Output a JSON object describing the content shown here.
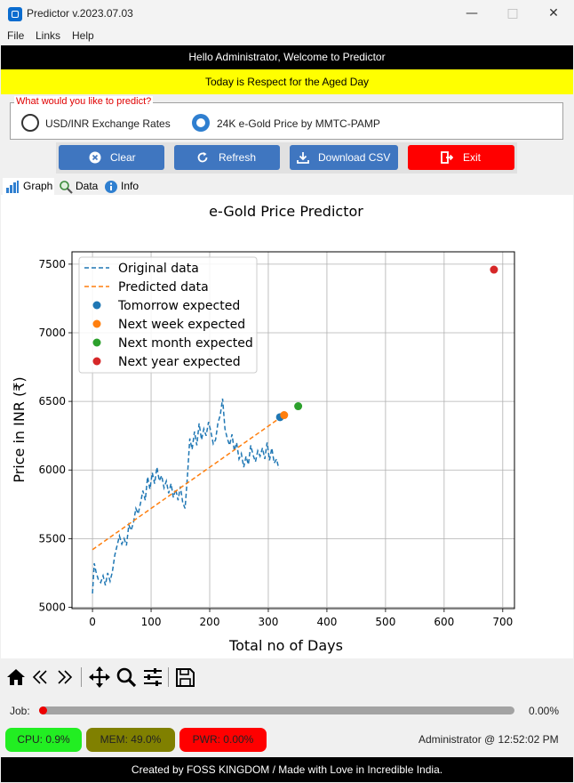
{
  "window": {
    "title": "Predictor v.2023.07.03"
  },
  "menu": {
    "items": [
      "File",
      "Links",
      "Help"
    ]
  },
  "banner": {
    "welcome": "Hello Administrator, Welcome to Predictor",
    "day_text": "Today is Respect for the Aged Day",
    "day_bg": "#ffff00"
  },
  "predict_group": {
    "legend": "What would you like to predict?",
    "options": [
      {
        "label": "USD/INR Exchange Rates",
        "selected": false
      },
      {
        "label": "24K e-Gold Price by MMTC-PAMP",
        "selected": true
      }
    ]
  },
  "buttons": {
    "clear": {
      "label": "Clear",
      "icon": "close-circle-icon",
      "color": "#3f76c0"
    },
    "refresh": {
      "label": "Refresh",
      "icon": "refresh-icon",
      "color": "#3f76c0"
    },
    "download": {
      "label": "Download CSV",
      "icon": "download-icon",
      "color": "#3f76c0"
    },
    "exit": {
      "label": "Exit",
      "icon": "exit-door-icon",
      "color": "#ff0000"
    }
  },
  "tabs": [
    {
      "label": "Graph",
      "icon": "bar-chart-icon",
      "active": true
    },
    {
      "label": "Data",
      "icon": "magnifier-icon",
      "active": false
    },
    {
      "label": "Info",
      "icon": "info-icon",
      "active": false
    }
  ],
  "chart_data": {
    "type": "line",
    "title": "e-Gold Price Predictor",
    "xlabel": "Total no of Days",
    "ylabel": "Price in INR (₹)",
    "xlim": [
      -35,
      720
    ],
    "ylim": [
      4990,
      7590
    ],
    "xticks": [
      0,
      100,
      200,
      300,
      400,
      500,
      600,
      700
    ],
    "yticks": [
      5000,
      5500,
      6000,
      6500,
      7000,
      7500
    ],
    "grid": true,
    "legend_position": "top-left",
    "series": [
      {
        "name": "Original data",
        "style": "dashed-line",
        "color": "#1f77b4",
        "x": [
          0,
          3,
          6,
          10,
          14,
          18,
          22,
          26,
          30,
          34,
          38,
          42,
          46,
          50,
          54,
          58,
          62,
          66,
          70,
          74,
          78,
          82,
          86,
          90,
          94,
          98,
          102,
          106,
          110,
          114,
          118,
          122,
          126,
          130,
          134,
          138,
          142,
          146,
          150,
          154,
          158,
          162,
          166,
          170,
          174,
          178,
          182,
          186,
          190,
          194,
          198,
          202,
          206,
          210,
          214,
          218,
          222,
          226,
          230,
          234,
          238,
          242,
          246,
          250,
          254,
          258,
          262,
          266,
          270,
          274,
          278,
          282,
          286,
          290,
          294,
          298,
          302,
          306,
          310,
          314,
          318
        ],
        "y": [
          5100,
          5320,
          5260,
          5200,
          5180,
          5230,
          5160,
          5250,
          5190,
          5260,
          5380,
          5450,
          5520,
          5460,
          5500,
          5450,
          5600,
          5560,
          5620,
          5720,
          5680,
          5760,
          5850,
          5780,
          5950,
          5860,
          5980,
          5900,
          6020,
          5920,
          5960,
          5870,
          5920,
          5830,
          5900,
          5800,
          5860,
          5780,
          5880,
          5760,
          5720,
          5950,
          6230,
          6150,
          6280,
          6180,
          6340,
          6220,
          6300,
          6250,
          6350,
          6280,
          6190,
          6220,
          6340,
          6400,
          6520,
          6300,
          6230,
          6180,
          6260,
          6140,
          6200,
          6080,
          6120,
          6020,
          6100,
          6040,
          6180,
          6110,
          6060,
          6140,
          6100,
          6160,
          6080,
          6200,
          6070,
          6160,
          6050,
          6080,
          6010
        ]
      },
      {
        "name": "Predicted data",
        "style": "dashed-line",
        "color": "#ff7f0e",
        "x": [
          0,
          320
        ],
        "y": [
          5420,
          6380
        ]
      }
    ],
    "points": [
      {
        "name": "Tomorrow expected",
        "color": "#1f77b4",
        "x": 320,
        "y": 6385
      },
      {
        "name": "Next week expected",
        "color": "#ff7f0e",
        "x": 327,
        "y": 6400
      },
      {
        "name": "Next month expected",
        "color": "#2ca02c",
        "x": 351,
        "y": 6465
      },
      {
        "name": "Next year expected",
        "color": "#d62728",
        "x": 685,
        "y": 7460
      }
    ]
  },
  "toolbar": {
    "icons": [
      "home-icon",
      "back-arrow-icon",
      "forward-arrow-icon",
      "pan-move-icon",
      "zoom-icon",
      "configure-subplots-icon",
      "save-icon"
    ]
  },
  "job": {
    "label": "Job:",
    "progress_fraction": 0.0,
    "percent_text": "0.00%",
    "knob_color": "#ee0000"
  },
  "status": {
    "cpu": {
      "text": "CPU: 0.9%",
      "color": "#22ee22"
    },
    "mem": {
      "text": "MEM: 49.0%",
      "color": "#808000"
    },
    "pwr": {
      "text": "PWR: 0.00%",
      "color": "#ff0000"
    },
    "user_time": "Administrator @ 12:52:02 PM"
  },
  "footer": {
    "text": "Created by FOSS KINGDOM / Made with Love in Incredible India."
  }
}
